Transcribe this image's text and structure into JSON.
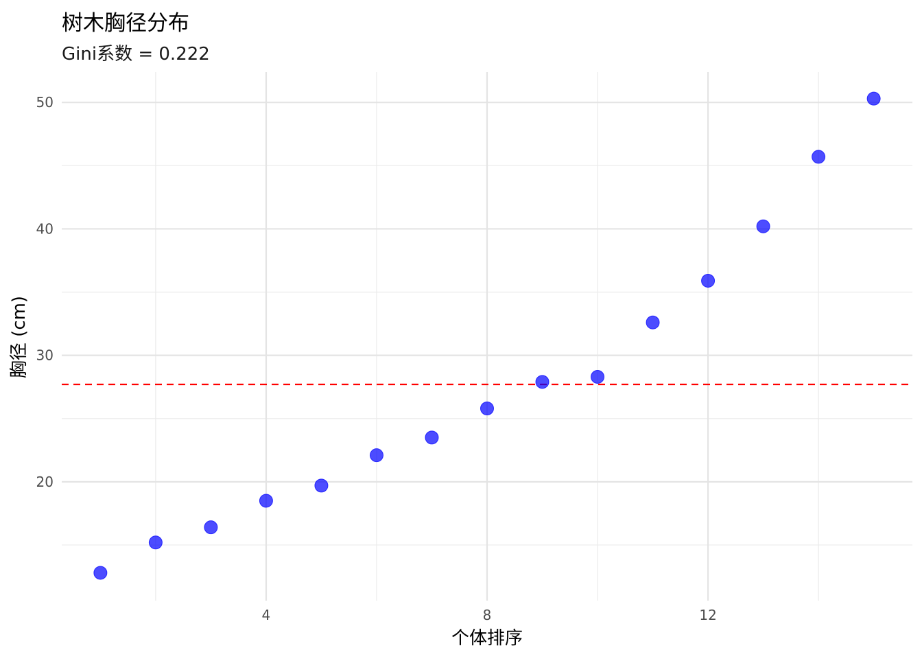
{
  "chart_data": {
    "type": "scatter",
    "title": "树木胸径分布",
    "subtitle": "Gini系数 = 0.222",
    "xlabel": "个体排序",
    "ylabel": "胸径 (cm)",
    "x": [
      1,
      2,
      3,
      4,
      5,
      6,
      7,
      8,
      9,
      10,
      11,
      12,
      13,
      14,
      15
    ],
    "y": [
      12.8,
      15.2,
      16.4,
      18.5,
      19.7,
      22.1,
      23.5,
      25.8,
      27.9,
      28.3,
      32.6,
      35.9,
      40.2,
      45.7,
      50.3
    ],
    "xlim": [
      0.3,
      15.7
    ],
    "ylim": [
      10.6,
      52.4
    ],
    "xticks": [
      4,
      8,
      12
    ],
    "xminor": [
      2,
      6,
      10,
      14
    ],
    "yticks": [
      20,
      30,
      40,
      50
    ],
    "yminor": [
      15,
      25,
      35,
      45
    ],
    "hline": {
      "y": 27.7,
      "style": "dashed",
      "color": "#ff0000"
    },
    "point_color": "#0000ff",
    "grid": true,
    "legend": "none"
  }
}
